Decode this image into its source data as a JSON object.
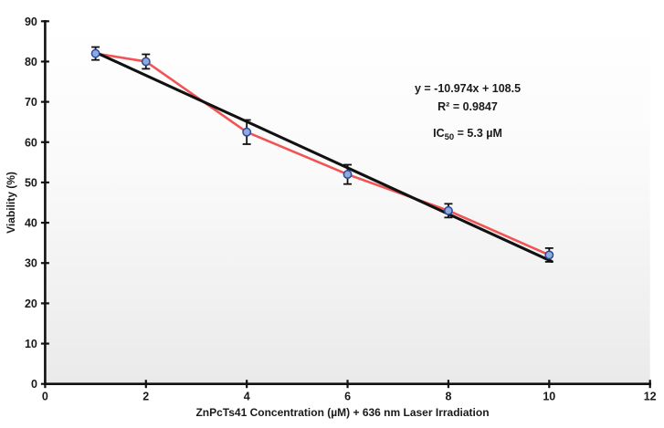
{
  "chart_data": {
    "type": "line",
    "title": "",
    "xlabel": "ZnPcTs41 Concentration (µM) + 636 nm Laser Irradiation",
    "ylabel": "Viability (%)",
    "xlim": [
      0,
      12
    ],
    "ylim": [
      0,
      90
    ],
    "x_ticks": [
      0,
      2,
      4,
      6,
      8,
      10,
      12
    ],
    "y_ticks": [
      0,
      10,
      20,
      30,
      40,
      50,
      60,
      70,
      80,
      90
    ],
    "grid": false,
    "legend": false,
    "plot_bg_top": "#ffffff",
    "plot_bg_mid": "#fafafa",
    "plot_bg_bottom": "#eaeaea",
    "series": [
      {
        "name": "viability-vs-concentration",
        "x": [
          1,
          2,
          4,
          6,
          8,
          10
        ],
        "y": [
          82,
          80,
          62.5,
          52,
          43,
          32
        ],
        "yerr": [
          1.6,
          1.8,
          3.0,
          2.4,
          1.7,
          1.7
        ],
        "line_color": "#f05454",
        "marker_fill": "#8faadc",
        "marker_stroke": "#2a4a96"
      }
    ],
    "trendline": {
      "x_start": 1,
      "y_start": 82.3,
      "x_end": 10.05,
      "y_end": 30.4,
      "color": "#111111"
    },
    "annotation": {
      "equation": "y = -10.974x + 108.5",
      "r2": "R² = 0.9847",
      "ic50_prefix": "IC",
      "ic50_sub": "50",
      "ic50_suffix": " = 5.3 µM"
    }
  }
}
